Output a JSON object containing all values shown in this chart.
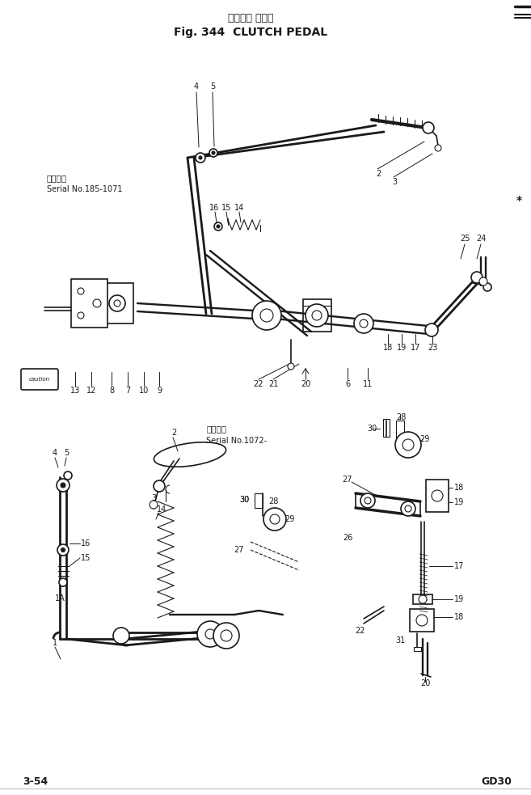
{
  "title_jp": "クラッチ ペダル",
  "title_en": "Fig. 344  CLUTCH PEDAL",
  "serial1_jp": "適用号機",
  "serial1_en": "Serial No.185-1071",
  "serial2_jp": "適用号機",
  "serial2_en": "Serial No.1072-",
  "page": "3-54",
  "model": "GD30",
  "bg": "#ffffff",
  "lc": "#1a1a1a",
  "fig_w": 6.57,
  "fig_h": 9.83,
  "dpi": 100
}
